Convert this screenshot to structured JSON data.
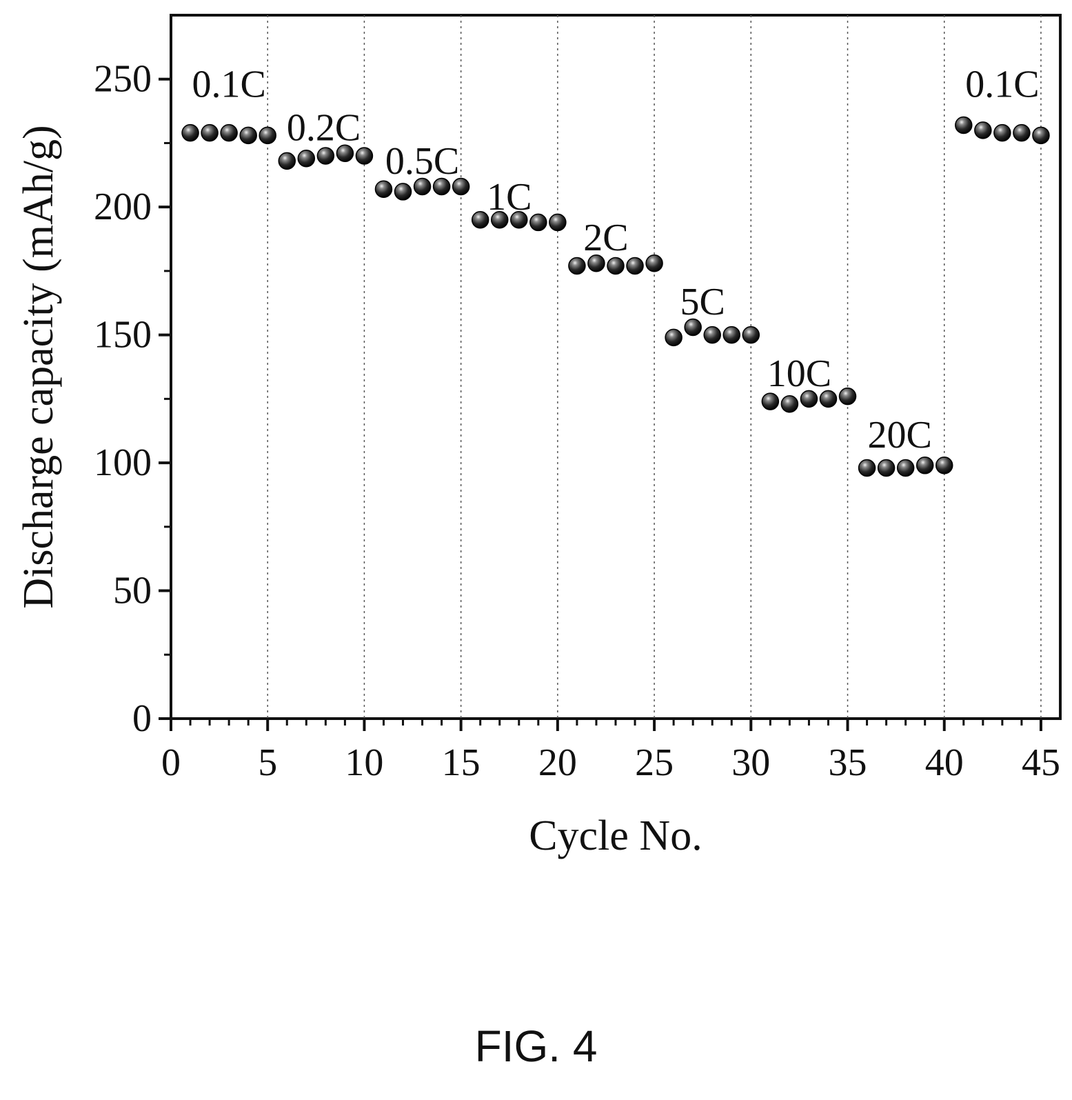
{
  "chart_data": {
    "type": "scatter",
    "xlabel": "Cycle No.",
    "ylabel": "Discharge capacity (mAh/g)",
    "xlim": [
      0,
      46
    ],
    "ylim": [
      0,
      275
    ],
    "xticks": [
      "0",
      "5",
      "10",
      "15",
      "20",
      "25",
      "30",
      "35",
      "40",
      "45"
    ],
    "yticks": [
      "0",
      "50",
      "100",
      "150",
      "200",
      "250"
    ],
    "vertical_dotted_lines_at": [
      5,
      10,
      15,
      20,
      25,
      30,
      35,
      40,
      45
    ],
    "marker": "filled sphere",
    "grid": false,
    "series": [
      {
        "x": [
          1,
          2,
          3,
          4,
          5,
          6,
          7,
          8,
          9,
          10,
          11,
          12,
          13,
          14,
          15,
          16,
          17,
          18,
          19,
          20,
          21,
          22,
          23,
          24,
          25,
          26,
          27,
          28,
          29,
          30,
          31,
          32,
          33,
          34,
          35,
          36,
          37,
          38,
          39,
          40,
          41,
          42,
          43,
          44,
          45
        ],
        "y": [
          229,
          229,
          229,
          228,
          228,
          218,
          219,
          220,
          221,
          220,
          207,
          206,
          208,
          208,
          208,
          195,
          195,
          195,
          194,
          194,
          177,
          178,
          177,
          177,
          178,
          149,
          153,
          150,
          150,
          150,
          124,
          123,
          125,
          125,
          126,
          98,
          98,
          98,
          99,
          99,
          232,
          230,
          229,
          229,
          228
        ]
      }
    ],
    "annotations": [
      {
        "text": "0.1C",
        "x": 3.0,
        "y": 243
      },
      {
        "text": "0.2C",
        "x": 7.9,
        "y": 226
      },
      {
        "text": "0.5C",
        "x": 13.0,
        "y": 213
      },
      {
        "text": "1C",
        "x": 17.5,
        "y": 199
      },
      {
        "text": "2C",
        "x": 22.5,
        "y": 183
      },
      {
        "text": "5C",
        "x": 27.5,
        "y": 158
      },
      {
        "text": "10C",
        "x": 32.5,
        "y": 130
      },
      {
        "text": "20C",
        "x": 37.7,
        "y": 106
      },
      {
        "text": "0.1C",
        "x": 43.0,
        "y": 243
      }
    ]
  },
  "caption": "FIG. 4"
}
